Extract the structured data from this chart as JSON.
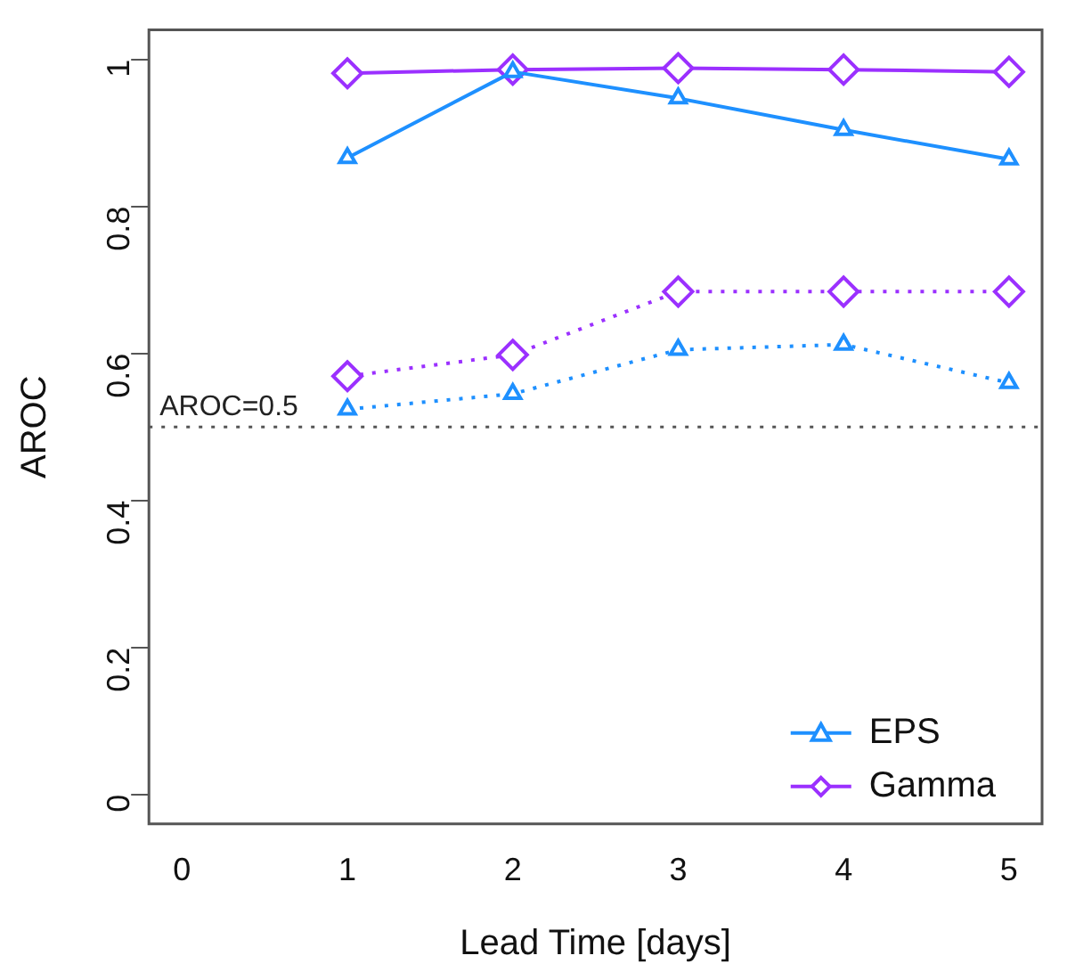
{
  "chart_data": {
    "type": "line",
    "xlabel": "Lead Time [days]",
    "ylabel": "AROC",
    "x": [
      1,
      2,
      3,
      4,
      5
    ],
    "series": [
      {
        "name": "EPS",
        "color": "#1e90ff",
        "marker": "triangle",
        "line_style": "solid",
        "values": [
          0.866,
          0.983,
          0.947,
          0.904,
          0.864
        ]
      },
      {
        "name": "Gamma",
        "color": "#9b30ff",
        "marker": "diamond",
        "line_style": "solid",
        "values": [
          0.981,
          0.986,
          0.988,
          0.986,
          0.983
        ]
      },
      {
        "color": "#1e90ff",
        "marker": "triangle",
        "line_style": "dotted",
        "values": [
          0.524,
          0.545,
          0.605,
          0.612,
          0.56
        ]
      },
      {
        "color": "#9b30ff",
        "marker": "diamond",
        "line_style": "dotted",
        "values": [
          0.569,
          0.598,
          0.684,
          0.684,
          0.684
        ]
      }
    ],
    "xlim": [
      -0.2,
      5.2
    ],
    "xticks": [
      0,
      1,
      2,
      3,
      4,
      5
    ],
    "ylim": [
      -0.04,
      1.04
    ],
    "yticks": [
      0,
      0.2,
      0.4,
      0.6,
      0.8,
      1
    ],
    "ref_lines": [
      {
        "axis": "y",
        "value": 0.5,
        "label": "AROC=0.5",
        "color": "#555555",
        "line_style": "dotted"
      }
    ],
    "grid": false,
    "legend": "bottom right"
  }
}
